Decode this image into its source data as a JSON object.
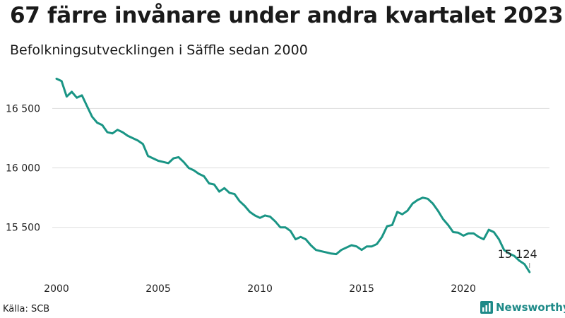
{
  "title": "67 färre invånare under andra kvartalet 2023",
  "subtitle": "Befolkningsutvecklingen i Säffle sedan 2000",
  "source": "Källa: SCB",
  "brand": {
    "name": "Newsworthy",
    "icon": "newsworthy-logo-icon",
    "color": "#1e8a88"
  },
  "end_label": "15 124",
  "colors": {
    "line": "#1a9585",
    "grid": "#dddddd",
    "text": "#222222"
  },
  "chart_data": {
    "type": "line",
    "title": "67 färre invånare under andra kvartalet 2023",
    "subtitle": "Befolkningsutvecklingen i Säffle sedan 2000",
    "xlabel": "",
    "ylabel": "",
    "x_ticks": [
      2000,
      2005,
      2010,
      2015,
      2020
    ],
    "x_tick_labels": [
      "2000",
      "2005",
      "2010",
      "2015",
      "2020"
    ],
    "y_ticks": [
      15500,
      16000,
      16500
    ],
    "y_tick_labels": [
      "15 500",
      "16 000",
      "16 500"
    ],
    "xlim": [
      2000,
      2024.3
    ],
    "ylim": [
      15035,
      16865
    ],
    "grid": "horizontal",
    "legend": "none",
    "series": [
      {
        "x": [
          2000.0,
          2000.25,
          2000.5,
          2000.75,
          2001.0,
          2001.25,
          2001.5,
          2001.75,
          2002.0,
          2002.25,
          2002.5,
          2002.75,
          2003.0,
          2003.25,
          2003.5,
          2003.75,
          2004.0,
          2004.25,
          2004.5,
          2004.75,
          2005.0,
          2005.25,
          2005.5,
          2005.75,
          2006.0,
          2006.25,
          2006.5,
          2006.75,
          2007.0,
          2007.25,
          2007.5,
          2007.75,
          2008.0,
          2008.25,
          2008.5,
          2008.75,
          2009.0,
          2009.25,
          2009.5,
          2009.75,
          2010.0,
          2010.25,
          2010.5,
          2010.75,
          2011.0,
          2011.25,
          2011.5,
          2011.75,
          2012.0,
          2012.25,
          2012.5,
          2012.75,
          2013.0,
          2013.25,
          2013.5,
          2013.75,
          2014.0,
          2014.25,
          2014.5,
          2014.75,
          2015.0,
          2015.25,
          2015.5,
          2015.75,
          2016.0,
          2016.25,
          2016.5,
          2016.75,
          2017.0,
          2017.25,
          2017.5,
          2017.75,
          2018.0,
          2018.25,
          2018.5,
          2018.75,
          2019.0,
          2019.25,
          2019.5,
          2019.75,
          2020.0,
          2020.25,
          2020.5,
          2020.75,
          2021.0,
          2021.25,
          2021.5,
          2021.75,
          2022.0,
          2022.25,
          2022.5,
          2022.75,
          2023.0,
          2023.25
        ],
        "values": [
          16750,
          16730,
          16600,
          16640,
          16590,
          16610,
          16520,
          16430,
          16380,
          16360,
          16300,
          16290,
          16320,
          16300,
          16270,
          16250,
          16230,
          16200,
          16100,
          16080,
          16060,
          16050,
          16040,
          16080,
          16090,
          16050,
          16000,
          15980,
          15950,
          15930,
          15870,
          15860,
          15800,
          15830,
          15790,
          15780,
          15720,
          15680,
          15630,
          15600,
          15580,
          15600,
          15590,
          15550,
          15500,
          15500,
          15470,
          15400,
          15420,
          15400,
          15350,
          15310,
          15300,
          15290,
          15280,
          15275,
          15310,
          15330,
          15350,
          15340,
          15310,
          15340,
          15340,
          15360,
          15420,
          15510,
          15520,
          15630,
          15610,
          15640,
          15700,
          15730,
          15750,
          15740,
          15700,
          15640,
          15570,
          15520,
          15460,
          15455,
          15430,
          15450,
          15450,
          15420,
          15400,
          15480,
          15460,
          15400,
          15310,
          15280,
          15260,
          15220,
          15191,
          15124
        ]
      }
    ],
    "annotations": [
      {
        "x": 2023.25,
        "y": 15124,
        "text": "15 124"
      }
    ]
  }
}
